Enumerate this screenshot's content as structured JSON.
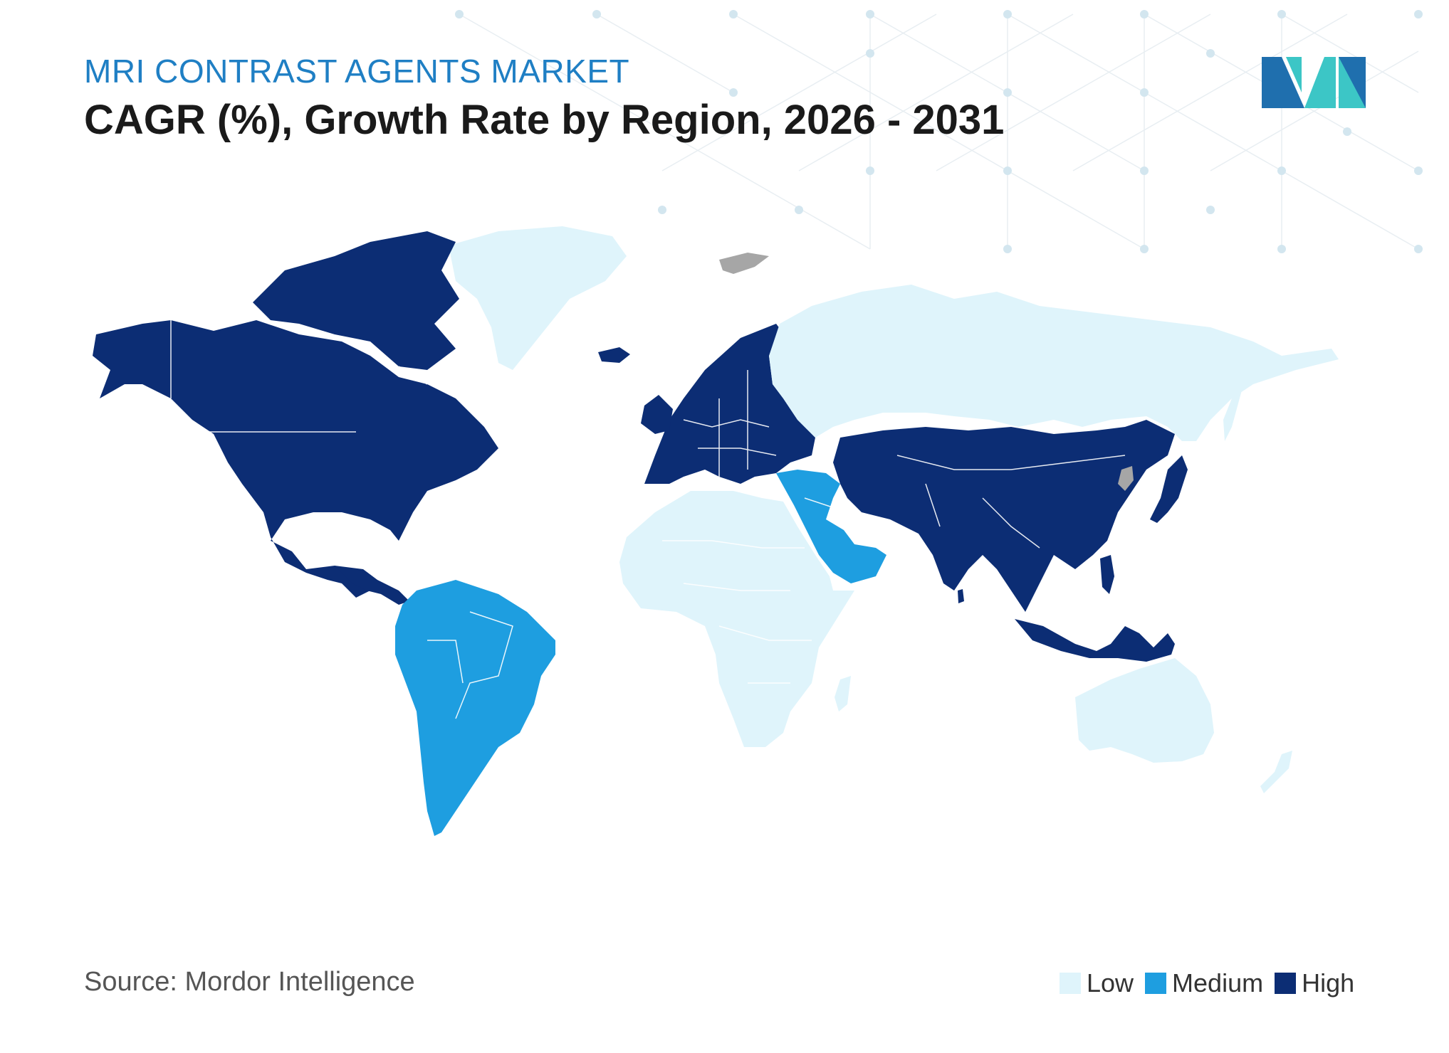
{
  "header": {
    "subtitle": "MRI CONTRAST AGENTS MARKET",
    "title": "CAGR (%), Growth Rate by Region, 2026 - 2031"
  },
  "source": "Source: Mordor Intelligence",
  "colors": {
    "low": "#dff4fb",
    "medium": "#1e9ee0",
    "high": "#0c2d74",
    "no_data": "#a6a6a6",
    "subtitle": "#1f7fc4",
    "logo_dark": "#1f6fae",
    "logo_teal": "#3cc6c6"
  },
  "legend": [
    {
      "key": "low",
      "label": "Low",
      "color": "#dff4fb"
    },
    {
      "key": "medium",
      "label": "Medium",
      "color": "#1e9ee0"
    },
    {
      "key": "high",
      "label": "High",
      "color": "#0c2d74"
    }
  ],
  "regions": [
    {
      "name": "North America",
      "level": "high"
    },
    {
      "name": "Europe",
      "level": "high"
    },
    {
      "name": "Asia-Pacific (excluding Russia, Mongolia-adjacent north and Australia/NZ)",
      "level": "high"
    },
    {
      "name": "South America",
      "level": "medium"
    },
    {
      "name": "Middle East",
      "level": "medium"
    },
    {
      "name": "Africa",
      "level": "low"
    },
    {
      "name": "Russia",
      "level": "low"
    },
    {
      "name": "Greenland",
      "level": "low"
    },
    {
      "name": "Australia and New Zealand",
      "level": "low"
    }
  ]
}
